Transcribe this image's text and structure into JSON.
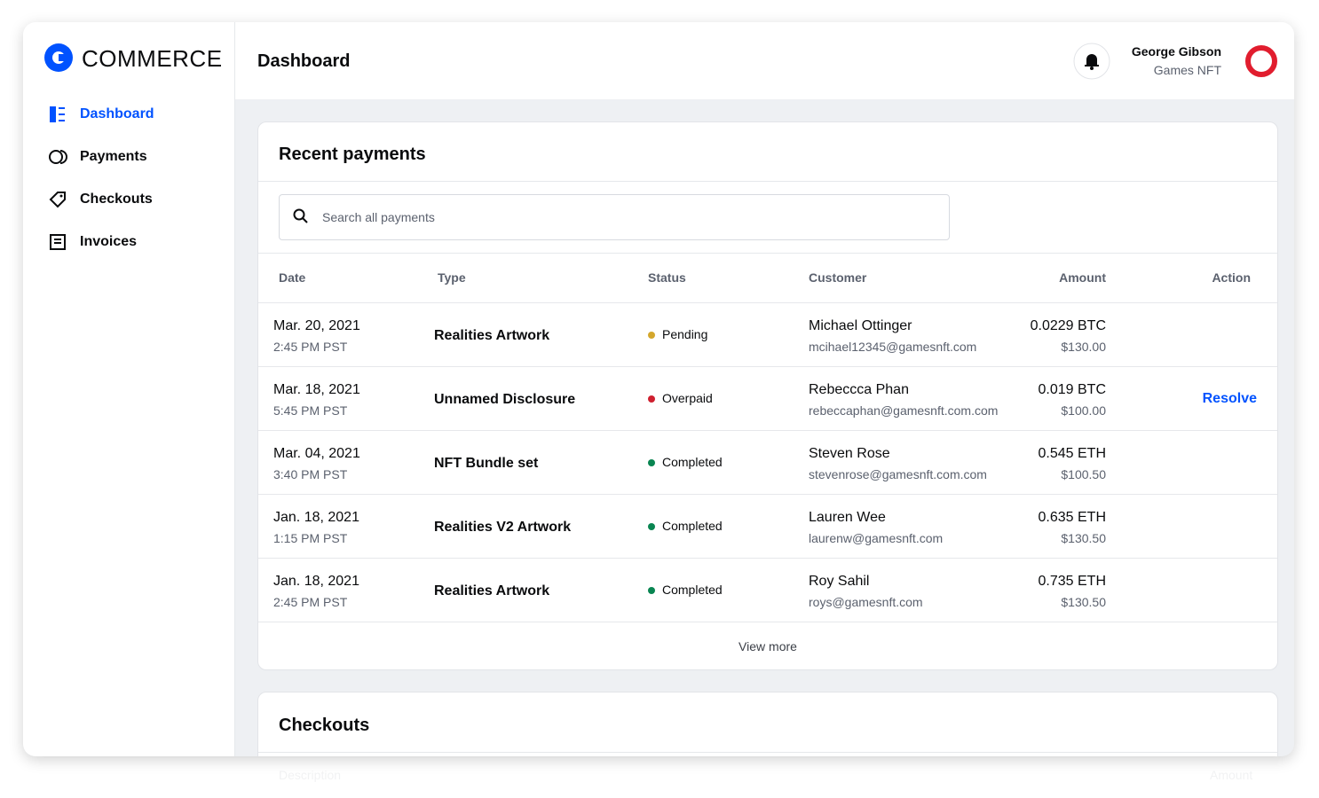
{
  "brand": "COMMERCE",
  "nav": [
    "Dashboard",
    "Payments",
    "Checkouts",
    "Invoices"
  ],
  "header": {
    "title": "Dashboard",
    "user_name": "George Gibson",
    "user_org": "Games NFT"
  },
  "payments": {
    "title": "Recent payments",
    "search_placeholder": "Search all payments",
    "columns": [
      "Date",
      "Type",
      "Status",
      "Customer",
      "Amount",
      "Action"
    ],
    "rows": [
      {
        "date": "Mar. 20, 2021",
        "time": "2:45 PM PST",
        "type": "Realities Artwork",
        "status": "Pending",
        "status_color": "#d4a72c",
        "customer": "Michael Ottinger",
        "email": "mcihael12345@gamesnft.com",
        "crypto": "0.0229 BTC",
        "usd": "$130.00"
      },
      {
        "date": "Mar. 18, 2021",
        "time": "5:45 PM PST",
        "type": "Unnamed Disclosure",
        "status": "Overpaid",
        "status_color": "#cf202f",
        "customer": "Rebeccca Phan",
        "email": "rebeccaphan@gamesnft.com.com",
        "crypto": "0.019 BTC",
        "usd": "$100.00",
        "action": "Resolve"
      },
      {
        "date": "Mar. 04, 2021",
        "time": "3:40 PM PST",
        "type": "NFT Bundle set",
        "status": "Completed",
        "status_color": "#098551",
        "customer": "Steven Rose",
        "email": "stevenrose@gamesnft.com.com",
        "crypto": "0.545 ETH",
        "usd": "$100.50"
      },
      {
        "date": "Jan. 18, 2021",
        "time": "1:15 PM PST",
        "type": "Realities V2 Artwork",
        "status": "Completed",
        "status_color": "#098551",
        "customer": "Lauren Wee",
        "email": "laurenw@gamesnft.com",
        "crypto": "0.635 ETH",
        "usd": "$130.50"
      },
      {
        "date": "Jan. 18, 2021",
        "time": "2:45 PM PST",
        "type": "Realities Artwork",
        "status": "Completed",
        "status_color": "#098551",
        "customer": "Roy Sahil",
        "email": "roys@gamesnft.com",
        "crypto": "0.735 ETH",
        "usd": "$130.50"
      }
    ],
    "view_more": "View more"
  },
  "checkouts": {
    "title": "Checkouts",
    "columns": [
      "Description",
      "Amount"
    ]
  }
}
